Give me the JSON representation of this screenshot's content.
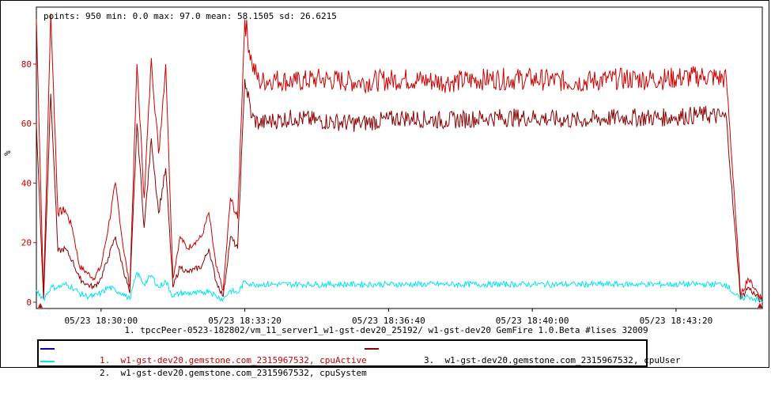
{
  "stats_line": "points: 950 min: 0.0 max: 97.0 mean: 58.1505 sd: 26.6215",
  "caption": "1. tpccPeer-0523-182802/vm_11_server1_w1-gst-dev20_25192/ w1-gst-dev20 GemFire 1.0.Beta #lises 32009",
  "legend": [
    {
      "number": "1.",
      "label": "w1-gst-dev20.gemstone.com_2315967532, cpuActive",
      "swatch_color": "#0000cc",
      "text_color": "#cc0000"
    },
    {
      "number": "3.",
      "label": "w1-gst-dev20.gemstone.com_2315967532, cpuUser",
      "swatch_color": "#8b0000",
      "text_color": "#000000"
    },
    {
      "number": "2.",
      "label": "w1-gst-dev20.gemstone.com_2315967532, cpuSystem",
      "swatch_color": "#00e5ee",
      "text_color": "#000000"
    }
  ],
  "chart_data": {
    "type": "line",
    "ylabel": "%",
    "ylim": [
      0,
      97
    ],
    "yticks": [
      0,
      20,
      40,
      60,
      80
    ],
    "xlim": [
      "05/23 18:28:30",
      "05/23 18:45:20"
    ],
    "xticks": [
      "05/23 18:30:00",
      "05/23 18:33:20",
      "05/23 18:36:40",
      "05/23 18:40:00",
      "05/23 18:43:20"
    ],
    "grid": false,
    "series": [
      {
        "name": "cpuActive",
        "color": "#cc0000",
        "x": [
          "18:28:30",
          "18:28:40",
          "18:28:50",
          "18:29:00",
          "18:29:10",
          "18:29:20",
          "18:29:30",
          "18:29:40",
          "18:29:50",
          "18:30:00",
          "18:30:10",
          "18:30:20",
          "18:30:30",
          "18:30:40",
          "18:30:50",
          "18:31:00",
          "18:31:10",
          "18:31:20",
          "18:31:30",
          "18:31:40",
          "18:31:50",
          "18:32:00",
          "18:32:10",
          "18:32:20",
          "18:32:30",
          "18:32:40",
          "18:32:50",
          "18:33:00",
          "18:33:10",
          "18:33:20",
          "18:33:30",
          "18:33:40",
          "18:34:00",
          "18:34:30",
          "18:35:00",
          "18:36:00",
          "18:37:00",
          "18:38:00",
          "18:39:00",
          "18:40:00",
          "18:41:00",
          "18:42:00",
          "18:43:00",
          "18:44:00",
          "18:44:30",
          "18:44:40",
          "18:44:50",
          "18:45:00",
          "18:45:20"
        ],
        "values": [
          95,
          2,
          97,
          30,
          31,
          25,
          12,
          10,
          8,
          12,
          25,
          40,
          20,
          5,
          80,
          35,
          82,
          50,
          80,
          8,
          22,
          18,
          20,
          22,
          30,
          12,
          4,
          35,
          28,
          95,
          80,
          74,
          75,
          74,
          75,
          74,
          75,
          74,
          75,
          75,
          74,
          75,
          75,
          76,
          75,
          40,
          2,
          8,
          1
        ]
      },
      {
        "name": "cpuUser",
        "color": "#8b0000",
        "x": [
          "18:28:30",
          "18:28:40",
          "18:28:50",
          "18:29:00",
          "18:29:10",
          "18:29:20",
          "18:29:30",
          "18:29:40",
          "18:29:50",
          "18:30:00",
          "18:30:10",
          "18:30:20",
          "18:30:30",
          "18:30:40",
          "18:30:50",
          "18:31:00",
          "18:31:10",
          "18:31:20",
          "18:31:30",
          "18:31:40",
          "18:31:50",
          "18:32:00",
          "18:32:10",
          "18:32:20",
          "18:32:30",
          "18:32:40",
          "18:32:50",
          "18:33:00",
          "18:33:10",
          "18:33:20",
          "18:33:30",
          "18:33:40",
          "18:34:00",
          "18:34:30",
          "18:35:00",
          "18:36:00",
          "18:37:00",
          "18:38:00",
          "18:39:00",
          "18:40:00",
          "18:41:00",
          "18:42:00",
          "18:43:00",
          "18:44:00",
          "18:44:30",
          "18:44:40",
          "18:44:50",
          "18:45:00",
          "18:45:20"
        ],
        "values": [
          60,
          1,
          70,
          17,
          18,
          14,
          8,
          6,
          5,
          8,
          15,
          22,
          12,
          3,
          60,
          25,
          55,
          30,
          45,
          5,
          12,
          10,
          11,
          12,
          18,
          7,
          2,
          22,
          18,
          75,
          62,
          60,
          61,
          62,
          61,
          60,
          62,
          61,
          62,
          62,
          61,
          62,
          62,
          63,
          62,
          30,
          1,
          5,
          0
        ]
      },
      {
        "name": "cpuSystem",
        "color": "#00e5ee",
        "x": [
          "18:28:30",
          "18:28:40",
          "18:28:50",
          "18:29:00",
          "18:29:10",
          "18:29:20",
          "18:29:30",
          "18:29:40",
          "18:29:50",
          "18:30:00",
          "18:30:10",
          "18:30:20",
          "18:30:30",
          "18:30:40",
          "18:30:50",
          "18:31:00",
          "18:31:10",
          "18:31:20",
          "18:31:30",
          "18:31:40",
          "18:31:50",
          "18:32:00",
          "18:32:10",
          "18:32:20",
          "18:32:30",
          "18:32:40",
          "18:32:50",
          "18:33:00",
          "18:33:10",
          "18:33:20",
          "18:33:30",
          "18:33:40",
          "18:34:00",
          "18:34:30",
          "18:35:00",
          "18:36:00",
          "18:37:00",
          "18:38:00",
          "18:39:00",
          "18:40:00",
          "18:41:00",
          "18:42:00",
          "18:43:00",
          "18:44:00",
          "18:44:30",
          "18:44:40",
          "18:44:50",
          "18:45:00",
          "18:45:20"
        ],
        "values": [
          4,
          1,
          5,
          5,
          6,
          5,
          3,
          2,
          2,
          3,
          5,
          4,
          3,
          1,
          10,
          6,
          9,
          5,
          7,
          2,
          3,
          3,
          3,
          3,
          4,
          2,
          1,
          4,
          3,
          7,
          6,
          6,
          6,
          6,
          6,
          6,
          6,
          6,
          6,
          6,
          6,
          6,
          6,
          6,
          6,
          3,
          1,
          2,
          0
        ]
      }
    ]
  }
}
